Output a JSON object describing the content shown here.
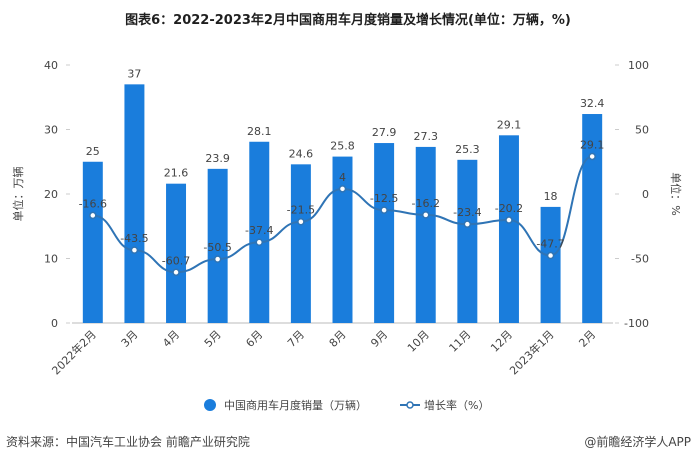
{
  "chart_data": {
    "type": "bar_line",
    "title": "图表6：2022-2023年2月中国商用车月度销量及增长情况(单位：万辆，%)",
    "y_label": "单位：万辆",
    "y2_label": "单位：%",
    "categories": [
      "2022年2月",
      "3月",
      "4月",
      "5月",
      "6月",
      "7月",
      "8月",
      "9月",
      "10月",
      "11月",
      "12月",
      "2023年1月",
      "2月"
    ],
    "series": [
      {
        "name": "中国商用车月度销量（万辆）",
        "type": "bar",
        "color": "#1a7ddc",
        "values": [
          25,
          37,
          21.6,
          23.9,
          28.1,
          24.6,
          25.8,
          27.9,
          27.3,
          25.3,
          29.1,
          18,
          32.4
        ]
      },
      {
        "name": "增长率（%）",
        "type": "line",
        "axis": "y2",
        "color": "#2f74b5",
        "values": [
          -16.6,
          -43.5,
          -60.7,
          -50.5,
          -37.4,
          -21.5,
          4,
          -12.5,
          -16.2,
          -23.4,
          -20.2,
          -47.7,
          29.1
        ]
      }
    ],
    "ylim": [
      0,
      40
    ],
    "yticks": [
      0,
      10,
      20,
      30,
      40
    ],
    "y2lim": [
      -100,
      100
    ],
    "y2ticks": [
      -100,
      -50,
      0,
      50,
      100
    ],
    "source": "资料来源：中国汽车工业协会 前瞻产业研究院",
    "credit": "@前瞻经济学人APP"
  }
}
